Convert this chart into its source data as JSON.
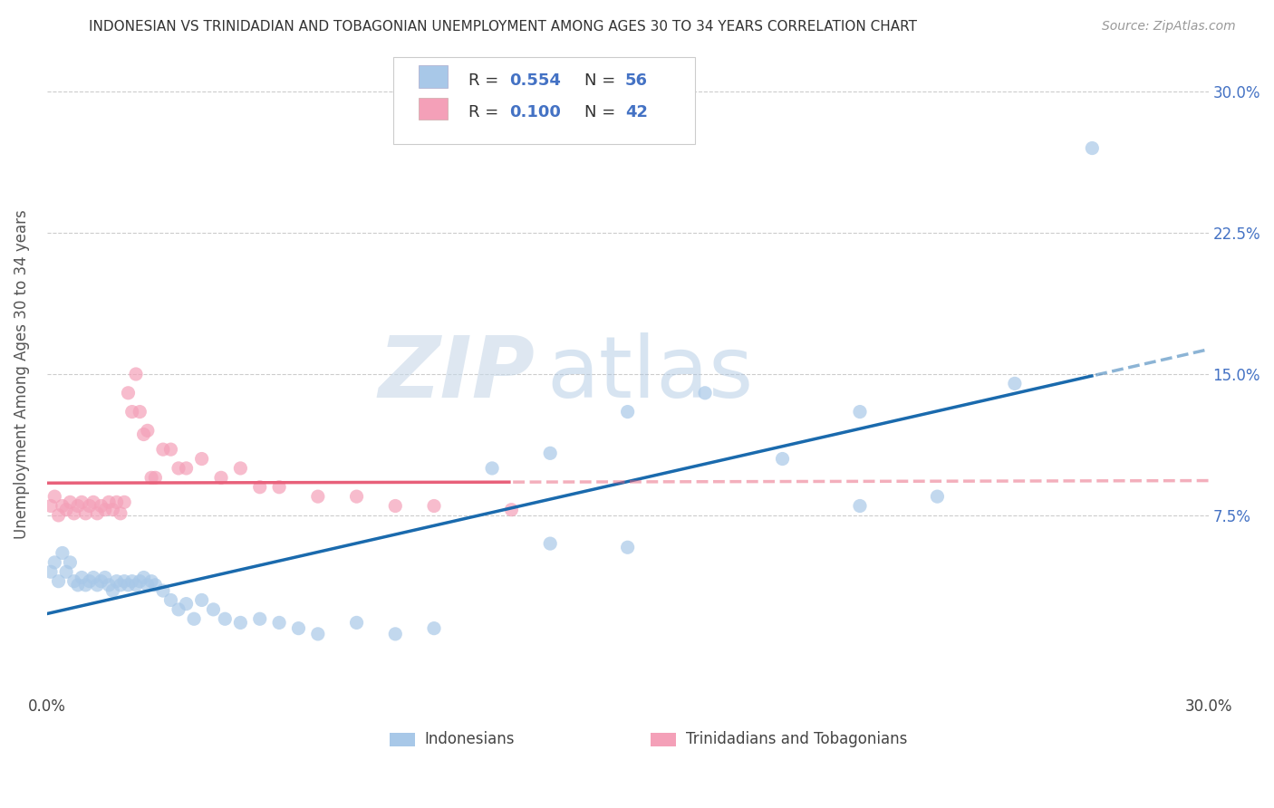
{
  "title": "INDONESIAN VS TRINIDADIAN AND TOBAGONIAN UNEMPLOYMENT AMONG AGES 30 TO 34 YEARS CORRELATION CHART",
  "source": "Source: ZipAtlas.com",
  "ylabel": "Unemployment Among Ages 30 to 34 years",
  "xlim": [
    0.0,
    0.3
  ],
  "ylim": [
    -0.02,
    0.32
  ],
  "watermark_zip": "ZIP",
  "watermark_atlas": "atlas",
  "blue_color": "#a8c8e8",
  "pink_color": "#f4a0b8",
  "blue_line_color": "#1a6aad",
  "pink_line_color": "#e8607a",
  "indonesian_x": [
    0.001,
    0.002,
    0.003,
    0.004,
    0.005,
    0.006,
    0.007,
    0.008,
    0.009,
    0.01,
    0.011,
    0.012,
    0.013,
    0.014,
    0.015,
    0.016,
    0.017,
    0.018,
    0.019,
    0.02,
    0.021,
    0.022,
    0.023,
    0.024,
    0.025,
    0.026,
    0.027,
    0.028,
    0.03,
    0.032,
    0.034,
    0.036,
    0.038,
    0.04,
    0.043,
    0.046,
    0.05,
    0.055,
    0.06,
    0.065,
    0.07,
    0.08,
    0.09,
    0.1,
    0.115,
    0.13,
    0.15,
    0.17,
    0.19,
    0.21,
    0.23,
    0.25,
    0.13,
    0.15,
    0.27,
    0.21
  ],
  "indonesian_y": [
    0.045,
    0.05,
    0.04,
    0.055,
    0.045,
    0.05,
    0.04,
    0.038,
    0.042,
    0.038,
    0.04,
    0.042,
    0.038,
    0.04,
    0.042,
    0.038,
    0.035,
    0.04,
    0.038,
    0.04,
    0.038,
    0.04,
    0.038,
    0.04,
    0.042,
    0.038,
    0.04,
    0.038,
    0.035,
    0.03,
    0.025,
    0.028,
    0.02,
    0.03,
    0.025,
    0.02,
    0.018,
    0.02,
    0.018,
    0.015,
    0.012,
    0.018,
    0.012,
    0.015,
    0.1,
    0.108,
    0.13,
    0.14,
    0.105,
    0.13,
    0.085,
    0.145,
    0.06,
    0.058,
    0.27,
    0.08
  ],
  "trinidadian_x": [
    0.001,
    0.002,
    0.003,
    0.004,
    0.005,
    0.006,
    0.007,
    0.008,
    0.009,
    0.01,
    0.011,
    0.012,
    0.013,
    0.014,
    0.015,
    0.016,
    0.017,
    0.018,
    0.019,
    0.02,
    0.021,
    0.022,
    0.023,
    0.024,
    0.025,
    0.026,
    0.027,
    0.028,
    0.03,
    0.032,
    0.034,
    0.036,
    0.04,
    0.045,
    0.05,
    0.055,
    0.06,
    0.07,
    0.08,
    0.09,
    0.1,
    0.12
  ],
  "trinidadian_y": [
    0.08,
    0.085,
    0.075,
    0.08,
    0.078,
    0.082,
    0.076,
    0.08,
    0.082,
    0.076,
    0.08,
    0.082,
    0.076,
    0.08,
    0.078,
    0.082,
    0.078,
    0.082,
    0.076,
    0.082,
    0.14,
    0.13,
    0.15,
    0.13,
    0.118,
    0.12,
    0.095,
    0.095,
    0.11,
    0.11,
    0.1,
    0.1,
    0.105,
    0.095,
    0.1,
    0.09,
    0.09,
    0.085,
    0.085,
    0.08,
    0.08,
    0.078
  ]
}
